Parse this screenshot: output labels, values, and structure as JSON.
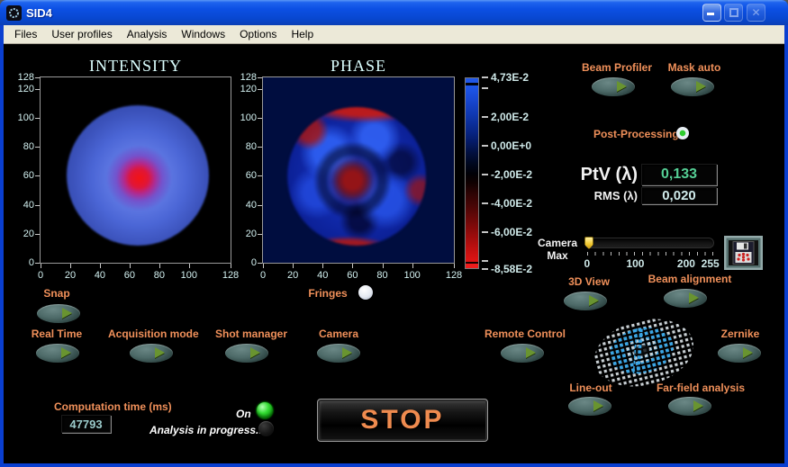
{
  "window": {
    "title": "SID4"
  },
  "menu": {
    "items": [
      "Files",
      "User profiles",
      "Analysis",
      "Windows",
      "Options",
      "Help"
    ]
  },
  "chart_data": [
    {
      "type": "heatmap",
      "title": "INTENSITY",
      "xlim": [
        0,
        128
      ],
      "ylim": [
        0,
        128
      ],
      "xticks": [
        0,
        20,
        40,
        60,
        80,
        100,
        128
      ],
      "yticks": [
        0,
        20,
        40,
        60,
        80,
        100,
        120,
        128
      ],
      "grid": false,
      "background": "#000000",
      "beam": {
        "center_x": 65,
        "center_y": 61,
        "radius": 48,
        "core_x": 66,
        "core_y": 59,
        "core_radius": 16,
        "core_color": "#e81212",
        "mid_color": "#4d6cd8",
        "edge_color": "#2a3f9e"
      },
      "description": "Circular laser beam intensity map: blue disc centered near (65,61), radius ~48 px, with bright red high-intensity core near (66,59)."
    },
    {
      "type": "heatmap",
      "title": "PHASE",
      "xlim": [
        0,
        128
      ],
      "ylim": [
        0,
        128
      ],
      "xticks": [
        0,
        20,
        40,
        60,
        80,
        100,
        128
      ],
      "yticks": [
        0,
        20,
        40,
        60,
        80,
        100,
        120,
        128
      ],
      "grid": false,
      "background": "#000d3f",
      "features": {
        "disc_center_x": 62,
        "disc_center_y": 60,
        "disc_radius": 46,
        "body_color": "#1233b8",
        "center_patch_color": "#8c1212",
        "rim_color": "#c01810"
      },
      "colorbar": {
        "min": -0.0858,
        "max": 0.0473,
        "ticks": [
          {
            "value": 0.0473,
            "label": "4,73E-2"
          },
          {
            "value": 0.02,
            "label": "2,00E-2"
          },
          {
            "value": 0.0,
            "label": "0,00E+0"
          },
          {
            "value": -0.02,
            "label": "-2,00E-2"
          },
          {
            "value": -0.04,
            "label": "-4,00E-2"
          },
          {
            "value": -0.06,
            "label": "-6,00E-2"
          },
          {
            "value": -0.0858,
            "label": "-8,58E-2"
          }
        ],
        "minor_ticks": [
          0.04,
          -0.08
        ]
      },
      "description": "Wavefront phase map: mottled blue disc centered near (62,60), dark red patch at its center, red rim segments at top and bottom edges, on a dark navy background."
    }
  ],
  "buttons": {
    "beam_profiler": "Beam Profiler",
    "mask_auto": "Mask auto",
    "three_d_view": "3D View",
    "beam_alignment": "Beam alignment",
    "remote_control": "Remote Control",
    "zernike": "Zernike",
    "line_out": "Line-out",
    "far_field": "Far-field analysis",
    "snap": "Snap",
    "real_time": "Real Time",
    "acquisition_mode": "Acquisition mode",
    "shot_manager": "Shot manager",
    "camera": "Camera",
    "stop": "STOP"
  },
  "indicators": {
    "post_processing": "Post-Processing",
    "post_processing_state": "on",
    "fringes": "Fringes",
    "fringes_state": "on",
    "on_label": "On",
    "on_state": "on",
    "analysis_label": "Analysis in progress...",
    "analysis_state": "off"
  },
  "readouts": {
    "ptv_label": "PtV (λ)",
    "ptv_value": "0,133",
    "rms_label": "RMS (λ)",
    "rms_value": "0,020",
    "computation_label": "Computation time (ms)",
    "computation_value": "47793"
  },
  "camera_slider": {
    "label_line1": "Camera",
    "label_line2": "Max",
    "min": 0,
    "max": 255,
    "value": 0,
    "tick_values": [
      0,
      100,
      200,
      255
    ],
    "tick_labels": [
      "0",
      "100",
      "200",
      "255"
    ]
  },
  "colors": {
    "accent_orange": "#f0905a",
    "pale_cyan": "#d2f0f0",
    "title_cyan": "#dcffff",
    "led_green": "#22cc22",
    "ptv_value_green": "#55cf95",
    "rms_value_cyan": "#cfeaea",
    "titlebar_blue": "#0c50e4",
    "menubar_beige": "#ece9d8"
  }
}
